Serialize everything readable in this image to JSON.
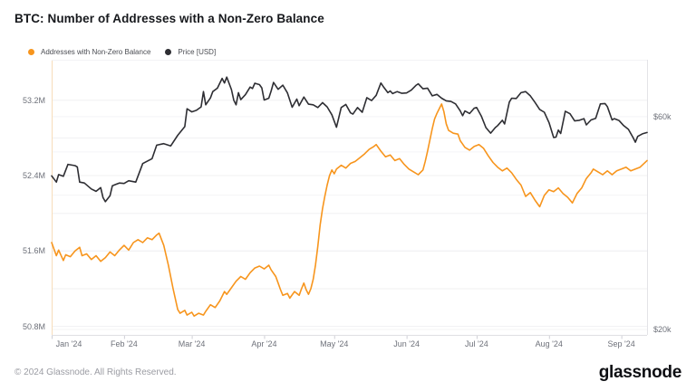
{
  "header": {
    "title": "BTC: Number of Addresses with a Non-Zero Balance"
  },
  "legend": [
    {
      "label": "Addresses with Non-Zero Balance",
      "color": "#F7951D"
    },
    {
      "label": "Price [USD]",
      "color": "#2E2E33"
    }
  ],
  "footer": {
    "copyright": "© 2024 Glassnode. All Rights Reserved.",
    "brand": "glassnode"
  },
  "chart_data": {
    "type": "line",
    "title": "BTC: Number of Addresses with a Non-Zero Balance",
    "legend_position": "top-left",
    "grid": true,
    "x_axis": {
      "unit": "date",
      "total_days": 255,
      "ticks": [
        {
          "day": 0,
          "label": "Jan '24"
        },
        {
          "day": 31,
          "label": "Feb '24"
        },
        {
          "day": 60,
          "label": "Mar '24"
        },
        {
          "day": 91,
          "label": "Apr '24"
        },
        {
          "day": 121,
          "label": "May '24"
        },
        {
          "day": 152,
          "label": "Jun '24"
        },
        {
          "day": 182,
          "label": "Jul '24"
        },
        {
          "day": 213,
          "label": "Aug '24"
        },
        {
          "day": 244,
          "label": "Sep '24"
        }
      ]
    },
    "y_left": {
      "unit": "addresses (millions)",
      "scale": "linear",
      "min": 50.71,
      "max": 53.63,
      "gridlines": [
        50.8,
        51.2,
        51.6,
        52.0,
        52.4,
        52.8,
        53.2
      ],
      "ticks": [
        {
          "value": 53.2,
          "label": "53.2M"
        },
        {
          "value": 52.4,
          "label": "52.4M"
        },
        {
          "value": 51.6,
          "label": "51.6M"
        },
        {
          "value": 50.8,
          "label": "50.8M"
        }
      ]
    },
    "y_right": {
      "unit": "USD (thousands)",
      "scale": "log",
      "min": 19.45,
      "max": 80.5,
      "gridlines": [
        20,
        30,
        40,
        50,
        60
      ],
      "ticks": [
        {
          "value": 60,
          "label": "$60k"
        },
        {
          "value": 20,
          "label": "$20k"
        }
      ]
    },
    "series": [
      {
        "name": "Addresses with Non-Zero Balance",
        "axis": "left",
        "color": "#F7951D",
        "unit": "M addresses",
        "points": [
          [
            0,
            51.69
          ],
          [
            2,
            51.55
          ],
          [
            3,
            51.61
          ],
          [
            5,
            51.5
          ],
          [
            6,
            51.56
          ],
          [
            8,
            51.54
          ],
          [
            10,
            51.6
          ],
          [
            12,
            51.64
          ],
          [
            13,
            51.55
          ],
          [
            15,
            51.57
          ],
          [
            17,
            51.51
          ],
          [
            19,
            51.55
          ],
          [
            21,
            51.49
          ],
          [
            23,
            51.53
          ],
          [
            25,
            51.59
          ],
          [
            27,
            51.55
          ],
          [
            29,
            51.61
          ],
          [
            31,
            51.66
          ],
          [
            33,
            51.61
          ],
          [
            35,
            51.69
          ],
          [
            37,
            51.72
          ],
          [
            39,
            51.69
          ],
          [
            41,
            51.74
          ],
          [
            43,
            51.72
          ],
          [
            45,
            51.77
          ],
          [
            46,
            51.79
          ],
          [
            48,
            51.66
          ],
          [
            50,
            51.45
          ],
          [
            52,
            51.2
          ],
          [
            54,
            50.98
          ],
          [
            55,
            50.94
          ],
          [
            57,
            50.97
          ],
          [
            58,
            50.92
          ],
          [
            60,
            50.95
          ],
          [
            61,
            50.91
          ],
          [
            63,
            50.94
          ],
          [
            65,
            50.92
          ],
          [
            66,
            50.96
          ],
          [
            68,
            51.03
          ],
          [
            70,
            51.0
          ],
          [
            72,
            51.07
          ],
          [
            74,
            51.17
          ],
          [
            75,
            51.14
          ],
          [
            77,
            51.21
          ],
          [
            79,
            51.28
          ],
          [
            81,
            51.33
          ],
          [
            83,
            51.3
          ],
          [
            85,
            51.37
          ],
          [
            87,
            51.42
          ],
          [
            89,
            51.44
          ],
          [
            91,
            51.41
          ],
          [
            93,
            51.45
          ],
          [
            94,
            51.4
          ],
          [
            96,
            51.33
          ],
          [
            97,
            51.26
          ],
          [
            98,
            51.19
          ],
          [
            99,
            51.13
          ],
          [
            101,
            51.15
          ],
          [
            102,
            51.1
          ],
          [
            104,
            51.17
          ],
          [
            106,
            51.13
          ],
          [
            107,
            51.2
          ],
          [
            108,
            51.26
          ],
          [
            109,
            51.19
          ],
          [
            110,
            51.14
          ],
          [
            111,
            51.2
          ],
          [
            112,
            51.3
          ],
          [
            113,
            51.45
          ],
          [
            114,
            51.65
          ],
          [
            115,
            51.88
          ],
          [
            116,
            52.05
          ],
          [
            117,
            52.18
          ],
          [
            118,
            52.3
          ],
          [
            119,
            52.4
          ],
          [
            120,
            52.46
          ],
          [
            121,
            52.42
          ],
          [
            122,
            52.47
          ],
          [
            124,
            52.51
          ],
          [
            126,
            52.48
          ],
          [
            128,
            52.53
          ],
          [
            130,
            52.55
          ],
          [
            132,
            52.59
          ],
          [
            134,
            52.63
          ],
          [
            136,
            52.68
          ],
          [
            138,
            52.71
          ],
          [
            139,
            52.73
          ],
          [
            141,
            52.66
          ],
          [
            143,
            52.6
          ],
          [
            145,
            52.62
          ],
          [
            147,
            52.56
          ],
          [
            149,
            52.58
          ],
          [
            151,
            52.52
          ],
          [
            153,
            52.47
          ],
          [
            155,
            52.44
          ],
          [
            157,
            52.41
          ],
          [
            159,
            52.46
          ],
          [
            160,
            52.55
          ],
          [
            161,
            52.66
          ],
          [
            162,
            52.78
          ],
          [
            163,
            52.9
          ],
          [
            164,
            53.0
          ],
          [
            165,
            53.06
          ],
          [
            166,
            53.11
          ],
          [
            167,
            53.16
          ],
          [
            168,
            53.08
          ],
          [
            169,
            52.95
          ],
          [
            170,
            52.88
          ],
          [
            172,
            52.85
          ],
          [
            174,
            52.84
          ],
          [
            175,
            52.77
          ],
          [
            177,
            52.7
          ],
          [
            179,
            52.67
          ],
          [
            181,
            52.71
          ],
          [
            183,
            52.73
          ],
          [
            185,
            52.69
          ],
          [
            187,
            52.61
          ],
          [
            189,
            52.54
          ],
          [
            191,
            52.49
          ],
          [
            193,
            52.45
          ],
          [
            195,
            52.48
          ],
          [
            197,
            52.43
          ],
          [
            199,
            52.36
          ],
          [
            201,
            52.3
          ],
          [
            203,
            52.18
          ],
          [
            205,
            52.22
          ],
          [
            207,
            52.14
          ],
          [
            209,
            52.07
          ],
          [
            211,
            52.19
          ],
          [
            213,
            52.25
          ],
          [
            215,
            52.23
          ],
          [
            217,
            52.27
          ],
          [
            219,
            52.21
          ],
          [
            221,
            52.17
          ],
          [
            223,
            52.11
          ],
          [
            225,
            52.21
          ],
          [
            227,
            52.27
          ],
          [
            229,
            52.37
          ],
          [
            231,
            52.43
          ],
          [
            232,
            52.47
          ],
          [
            234,
            52.44
          ],
          [
            236,
            52.41
          ],
          [
            238,
            52.45
          ],
          [
            240,
            52.41
          ],
          [
            242,
            52.45
          ],
          [
            244,
            52.47
          ],
          [
            246,
            52.49
          ],
          [
            248,
            52.45
          ],
          [
            250,
            52.47
          ],
          [
            252,
            52.49
          ],
          [
            255,
            52.56
          ]
        ]
      },
      {
        "name": "Price [USD]",
        "axis": "right",
        "color": "#2E2E33",
        "unit": "USD thousands",
        "points": [
          [
            0,
            44.2
          ],
          [
            2,
            42.8
          ],
          [
            3,
            44.5
          ],
          [
            5,
            44.1
          ],
          [
            7,
            46.9
          ],
          [
            10,
            46.6
          ],
          [
            11,
            46.3
          ],
          [
            12,
            42.8
          ],
          [
            14,
            42.6
          ],
          [
            17,
            41.3
          ],
          [
            19,
            40.8
          ],
          [
            21,
            41.6
          ],
          [
            22,
            39.5
          ],
          [
            23,
            38.7
          ],
          [
            25,
            39.9
          ],
          [
            26,
            42.0
          ],
          [
            29,
            42.6
          ],
          [
            31,
            42.5
          ],
          [
            33,
            43.1
          ],
          [
            36,
            42.8
          ],
          [
            39,
            47.1
          ],
          [
            43,
            48.3
          ],
          [
            45,
            51.8
          ],
          [
            48,
            52.2
          ],
          [
            51,
            51.6
          ],
          [
            54,
            54.5
          ],
          [
            57,
            57.0
          ],
          [
            58,
            62.5
          ],
          [
            60,
            61.5
          ],
          [
            62,
            62.0
          ],
          [
            64,
            63.1
          ],
          [
            65,
            68.3
          ],
          [
            66,
            63.8
          ],
          [
            68,
            66.1
          ],
          [
            69,
            68.3
          ],
          [
            71,
            69.5
          ],
          [
            73,
            73.1
          ],
          [
            74,
            71.4
          ],
          [
            75,
            73.6
          ],
          [
            77,
            69.0
          ],
          [
            78,
            65.3
          ],
          [
            79,
            63.8
          ],
          [
            80,
            67.9
          ],
          [
            81,
            65.5
          ],
          [
            83,
            67.2
          ],
          [
            85,
            69.9
          ],
          [
            86,
            69.4
          ],
          [
            87,
            71.3
          ],
          [
            89,
            70.8
          ],
          [
            90,
            69.6
          ],
          [
            91,
            65.4
          ],
          [
            93,
            66.0
          ],
          [
            94,
            68.5
          ],
          [
            95,
            71.6
          ],
          [
            97,
            69.1
          ],
          [
            99,
            70.6
          ],
          [
            101,
            67.8
          ],
          [
            103,
            63.0
          ],
          [
            105,
            65.7
          ],
          [
            106,
            63.5
          ],
          [
            108,
            66.4
          ],
          [
            110,
            64.0
          ],
          [
            112,
            63.8
          ],
          [
            114,
            62.9
          ],
          [
            116,
            64.5
          ],
          [
            118,
            63.1
          ],
          [
            120,
            60.6
          ],
          [
            122,
            56.8
          ],
          [
            124,
            62.9
          ],
          [
            126,
            63.9
          ],
          [
            128,
            61.2
          ],
          [
            129,
            60.8
          ],
          [
            131,
            62.9
          ],
          [
            133,
            61.4
          ],
          [
            135,
            66.2
          ],
          [
            137,
            65.2
          ],
          [
            139,
            67.0
          ],
          [
            141,
            71.4
          ],
          [
            142,
            70.1
          ],
          [
            144,
            67.9
          ],
          [
            145,
            68.5
          ],
          [
            146,
            67.6
          ],
          [
            148,
            68.3
          ],
          [
            150,
            67.7
          ],
          [
            152,
            67.8
          ],
          [
            154,
            68.8
          ],
          [
            156,
            70.5
          ],
          [
            157,
            71.1
          ],
          [
            159,
            69.3
          ],
          [
            161,
            69.5
          ],
          [
            163,
            66.8
          ],
          [
            165,
            67.3
          ],
          [
            167,
            66.0
          ],
          [
            169,
            65.1
          ],
          [
            171,
            64.9
          ],
          [
            173,
            64.1
          ],
          [
            175,
            61.8
          ],
          [
            176,
            60.3
          ],
          [
            177,
            61.8
          ],
          [
            179,
            61.0
          ],
          [
            181,
            62.7
          ],
          [
            182,
            62.9
          ],
          [
            184,
            60.2
          ],
          [
            186,
            56.7
          ],
          [
            188,
            55.1
          ],
          [
            190,
            56.7
          ],
          [
            191,
            57.3
          ],
          [
            193,
            58.9
          ],
          [
            194,
            57.8
          ],
          [
            196,
            64.7
          ],
          [
            197,
            66.0
          ],
          [
            199,
            65.9
          ],
          [
            201,
            67.9
          ],
          [
            203,
            68.3
          ],
          [
            205,
            66.8
          ],
          [
            207,
            64.6
          ],
          [
            209,
            62.3
          ],
          [
            211,
            61.4
          ],
          [
            213,
            58.2
          ],
          [
            215,
            53.9
          ],
          [
            216,
            54.0
          ],
          [
            217,
            56.0
          ],
          [
            218,
            55.0
          ],
          [
            220,
            61.7
          ],
          [
            222,
            60.9
          ],
          [
            224,
            58.7
          ],
          [
            226,
            58.9
          ],
          [
            228,
            59.4
          ],
          [
            229,
            57.5
          ],
          [
            231,
            59.0
          ],
          [
            233,
            59.5
          ],
          [
            235,
            64.1
          ],
          [
            237,
            64.2
          ],
          [
            238,
            63.2
          ],
          [
            240,
            59.0
          ],
          [
            241,
            59.4
          ],
          [
            242,
            59.1
          ],
          [
            243,
            58.8
          ],
          [
            245,
            57.3
          ],
          [
            247,
            56.2
          ],
          [
            249,
            53.9
          ],
          [
            250,
            52.6
          ],
          [
            251,
            54.2
          ],
          [
            253,
            54.9
          ],
          [
            255,
            55.3
          ]
        ]
      }
    ]
  }
}
